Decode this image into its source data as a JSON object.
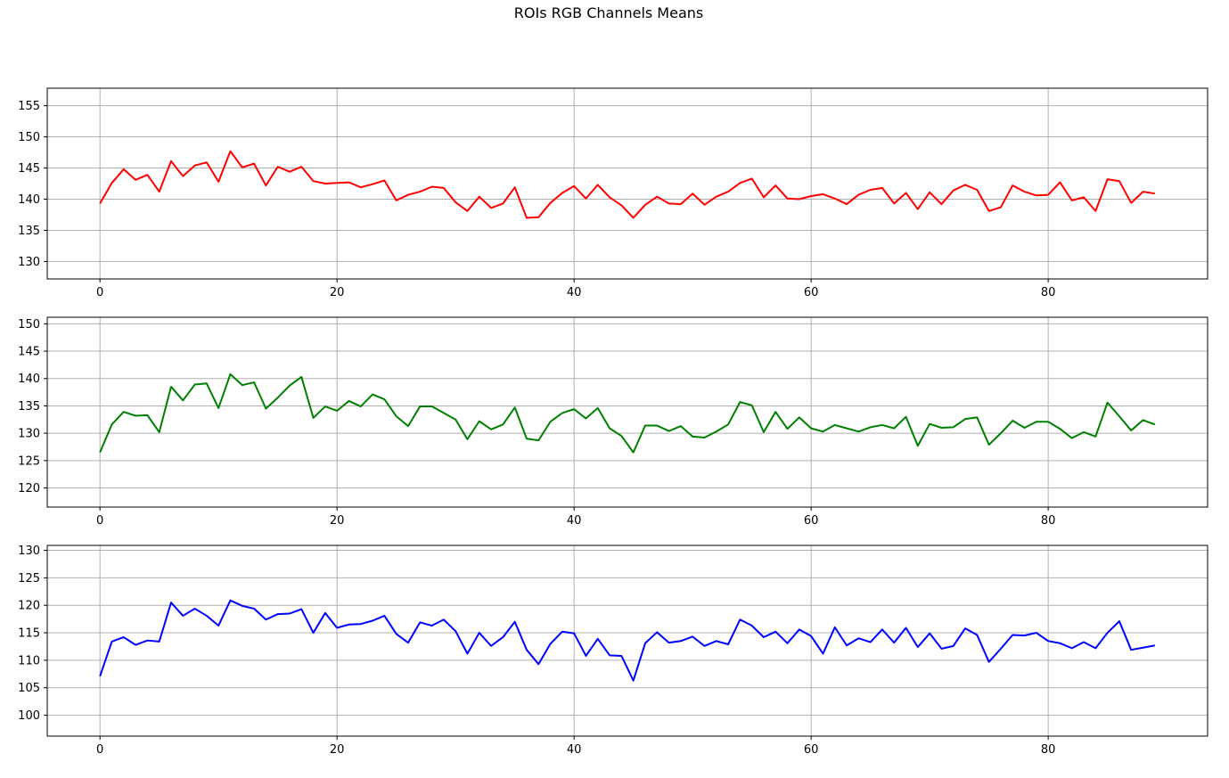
{
  "figure_title": "ROIs RGB Channels Means",
  "chart_data": [
    {
      "type": "line",
      "title": "",
      "xlabel": "",
      "ylabel": "",
      "xlim": [
        -4.45,
        93.45
      ],
      "ylim": [
        127.2,
        157.8
      ],
      "xticks": [
        0,
        20,
        40,
        60,
        80
      ],
      "yticks": [
        130,
        135,
        140,
        145,
        150,
        155
      ],
      "grid": true,
      "series": [
        {
          "color": "#ff0000",
          "x": [
            0,
            1,
            2,
            3,
            4,
            5,
            6,
            7,
            8,
            9,
            10,
            11,
            12,
            13,
            14,
            15,
            16,
            17,
            18,
            19,
            20,
            21,
            22,
            23,
            24,
            25,
            26,
            27,
            28,
            29,
            30,
            31,
            32,
            33,
            34,
            35,
            36,
            37,
            38,
            39,
            40,
            41,
            42,
            43,
            44,
            45,
            46,
            47,
            48,
            49,
            50,
            51,
            52,
            53,
            54,
            55,
            56,
            57,
            58,
            59,
            60,
            61,
            62,
            63,
            64,
            65,
            66,
            67,
            68,
            69,
            70,
            71,
            72,
            73,
            74,
            75,
            76,
            77,
            78,
            79,
            80,
            81,
            82,
            83,
            84,
            85,
            86,
            87,
            88,
            89
          ],
          "y": [
            139.3,
            142.6,
            144.8,
            143.1,
            143.9,
            141.2,
            146.1,
            143.7,
            145.4,
            145.9,
            142.8,
            147.7,
            145.1,
            145.7,
            142.2,
            145.2,
            144.4,
            145.2,
            142.9,
            142.5,
            142.6,
            142.7,
            141.9,
            142.4,
            143.0,
            139.8,
            140.7,
            141.2,
            142.0,
            141.8,
            139.5,
            138.1,
            140.4,
            138.6,
            139.3,
            141.9,
            137.0,
            137.1,
            139.4,
            141.0,
            142.1,
            140.1,
            142.3,
            140.3,
            139.0,
            137.0,
            139.1,
            140.4,
            139.3,
            139.2,
            140.9,
            139.1,
            140.4,
            141.2,
            142.6,
            143.3,
            140.3,
            142.2,
            140.1,
            140.0,
            140.5,
            140.8,
            140.1,
            139.2,
            140.7,
            141.5,
            141.8,
            139.3,
            141.0,
            138.4,
            141.1,
            139.2,
            141.4,
            142.3,
            141.5,
            138.1,
            138.7,
            142.2,
            141.2,
            140.6,
            140.7,
            142.7,
            139.8,
            140.3,
            138.1,
            143.2,
            142.9,
            139.4,
            141.2,
            140.9
          ]
        }
      ]
    },
    {
      "type": "line",
      "title": "",
      "xlabel": "",
      "ylabel": "",
      "xlim": [
        -4.45,
        93.45
      ],
      "ylim": [
        116.5,
        151.2
      ],
      "xticks": [
        0,
        20,
        40,
        60,
        80
      ],
      "yticks": [
        120,
        125,
        130,
        135,
        140,
        145,
        150
      ],
      "grid": true,
      "series": [
        {
          "color": "#008000",
          "x": [
            0,
            1,
            2,
            3,
            4,
            5,
            6,
            7,
            8,
            9,
            10,
            11,
            12,
            13,
            14,
            15,
            16,
            17,
            18,
            19,
            20,
            21,
            22,
            23,
            24,
            25,
            26,
            27,
            28,
            29,
            30,
            31,
            32,
            33,
            34,
            35,
            36,
            37,
            38,
            39,
            40,
            41,
            42,
            43,
            44,
            45,
            46,
            47,
            48,
            49,
            50,
            51,
            52,
            53,
            54,
            55,
            56,
            57,
            58,
            59,
            60,
            61,
            62,
            63,
            64,
            65,
            66,
            67,
            68,
            69,
            70,
            71,
            72,
            73,
            74,
            75,
            76,
            77,
            78,
            79,
            80,
            81,
            82,
            83,
            84,
            85,
            86,
            87,
            88,
            89
          ],
          "y": [
            126.5,
            131.6,
            133.9,
            133.2,
            133.3,
            130.2,
            138.5,
            136.0,
            138.9,
            139.1,
            134.6,
            140.8,
            138.8,
            139.3,
            134.5,
            136.5,
            138.7,
            140.3,
            132.8,
            134.9,
            134.1,
            135.9,
            134.9,
            137.1,
            136.2,
            133.1,
            131.3,
            134.9,
            134.9,
            133.7,
            132.5,
            128.9,
            132.2,
            130.7,
            131.6,
            134.7,
            129.0,
            128.7,
            132.1,
            133.7,
            134.4,
            132.7,
            134.6,
            130.9,
            129.5,
            126.5,
            131.4,
            131.4,
            130.4,
            131.3,
            129.4,
            129.2,
            130.3,
            131.6,
            135.7,
            135.1,
            130.2,
            133.9,
            130.8,
            132.9,
            130.9,
            130.3,
            131.5,
            130.9,
            130.3,
            131.1,
            131.5,
            130.9,
            133.0,
            127.7,
            131.7,
            131.0,
            131.1,
            132.6,
            132.9,
            127.9,
            130.0,
            132.3,
            131.0,
            132.1,
            132.1,
            130.8,
            129.1,
            130.2,
            129.4,
            135.6,
            133.1,
            130.5,
            132.4,
            131.6
          ]
        }
      ]
    },
    {
      "type": "line",
      "title": "",
      "xlabel": "",
      "ylabel": "",
      "xlim": [
        -4.45,
        93.45
      ],
      "ylim": [
        96.2,
        130.9
      ],
      "xticks": [
        0,
        20,
        40,
        60,
        80
      ],
      "yticks": [
        100,
        105,
        110,
        115,
        120,
        125,
        130
      ],
      "grid": true,
      "series": [
        {
          "color": "#0000ff",
          "x": [
            0,
            1,
            2,
            3,
            4,
            5,
            6,
            7,
            8,
            9,
            10,
            11,
            12,
            13,
            14,
            15,
            16,
            17,
            18,
            19,
            20,
            21,
            22,
            23,
            24,
            25,
            26,
            27,
            28,
            29,
            30,
            31,
            32,
            33,
            34,
            35,
            36,
            37,
            38,
            39,
            40,
            41,
            42,
            43,
            44,
            45,
            46,
            47,
            48,
            49,
            50,
            51,
            52,
            53,
            54,
            55,
            56,
            57,
            58,
            59,
            60,
            61,
            62,
            63,
            64,
            65,
            66,
            67,
            68,
            69,
            70,
            71,
            72,
            73,
            74,
            75,
            76,
            77,
            78,
            79,
            80,
            81,
            82,
            83,
            84,
            85,
            86,
            87,
            88,
            89
          ],
          "y": [
            107.1,
            113.4,
            114.2,
            112.8,
            113.6,
            113.4,
            120.5,
            118.1,
            119.4,
            118.1,
            116.3,
            120.9,
            119.9,
            119.4,
            117.4,
            118.4,
            118.5,
            119.3,
            115.0,
            118.6,
            115.9,
            116.5,
            116.6,
            117.2,
            118.1,
            114.8,
            113.2,
            116.9,
            116.3,
            117.4,
            115.3,
            111.2,
            115.0,
            112.6,
            114.2,
            117.0,
            111.9,
            109.3,
            113.0,
            115.2,
            114.9,
            110.8,
            113.9,
            110.9,
            110.8,
            106.3,
            113.1,
            115.1,
            113.2,
            113.5,
            114.3,
            112.6,
            113.5,
            112.9,
            117.4,
            116.3,
            114.2,
            115.2,
            113.1,
            115.6,
            114.4,
            111.2,
            116.0,
            112.7,
            114.0,
            113.3,
            115.6,
            113.2,
            115.9,
            112.4,
            114.9,
            112.1,
            112.6,
            115.8,
            114.6,
            109.7,
            112.1,
            114.6,
            114.5,
            115.0,
            113.5,
            113.1,
            112.2,
            113.3,
            112.2,
            115.0,
            117.1,
            111.9,
            112.3,
            112.7
          ]
        }
      ]
    }
  ]
}
